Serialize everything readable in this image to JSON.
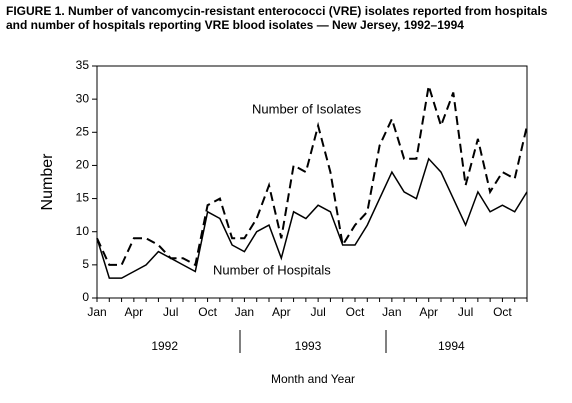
{
  "chart_data": {
    "type": "line",
    "title": "FIGURE 1. Number of vancomycin-resistant enterococci (VRE) isolates reported from hospitals and number of hospitals reporting VRE blood isolates — New Jersey, 1992–1994",
    "categories": [
      "Jan",
      null,
      null,
      "Apr",
      null,
      null,
      "Jul",
      null,
      null,
      "Oct",
      null,
      null,
      "Jan",
      null,
      null,
      "Apr",
      null,
      null,
      "Jul",
      null,
      null,
      "Oct",
      null,
      null,
      "Jan",
      null,
      null,
      "Apr",
      null,
      null,
      "Jul",
      null,
      null,
      "Oct",
      null,
      null
    ],
    "years": [
      "1992",
      "1993",
      "1994"
    ],
    "series": [
      {
        "name": "Number of Isolates",
        "color": "#000000",
        "dash": true,
        "values": [
          9,
          5,
          5,
          9,
          9,
          8,
          6,
          6,
          5,
          14,
          15,
          9,
          9,
          12,
          17,
          9,
          20,
          19,
          26,
          19,
          8,
          11,
          13,
          23,
          27,
          21,
          21,
          32,
          26,
          31,
          17,
          24,
          16,
          19,
          18,
          26
        ]
      },
      {
        "name": "Number of Hospitals",
        "color": "#000000",
        "dash": false,
        "values": [
          9,
          3,
          3,
          4,
          5,
          7,
          6,
          5,
          4,
          13,
          12,
          8,
          7,
          10,
          11,
          6,
          13,
          12,
          14,
          13,
          8,
          8,
          11,
          15,
          19,
          16,
          15,
          21,
          19,
          15,
          11,
          16,
          13,
          14,
          13,
          16
        ]
      }
    ],
    "ylabel": "Number",
    "xlabel": "Month and Year",
    "ylim": [
      0,
      35
    ],
    "yticks": [
      0,
      5,
      10,
      15,
      20,
      25,
      30,
      35
    ],
    "grid": false
  }
}
